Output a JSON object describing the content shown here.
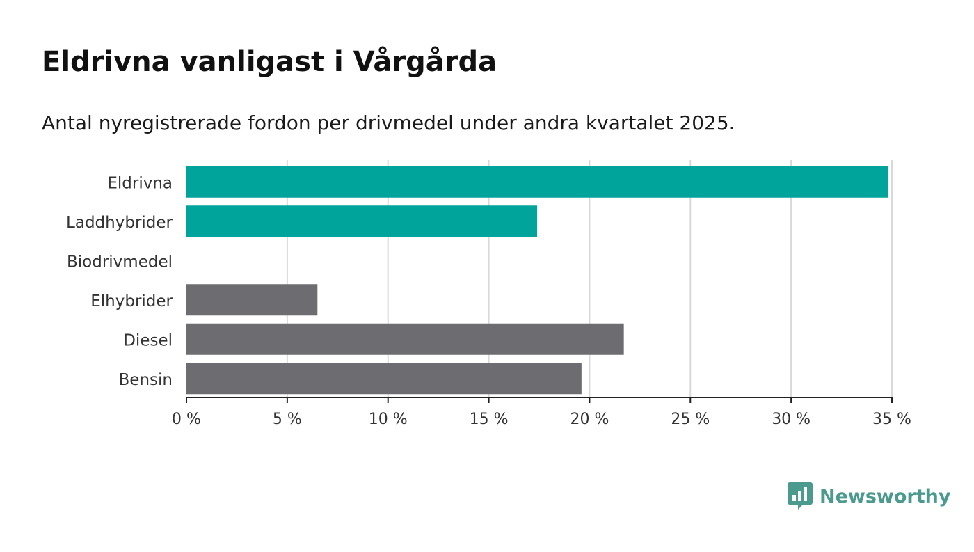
{
  "header": {
    "title": "Eldrivna vanligast i Vårgårda",
    "subtitle": "Antal nyregistrerade fordon per drivmedel under andra kvartalet 2025."
  },
  "brand": {
    "name": "Newsworthy",
    "color": "#4a9a8e",
    "icon": "bar-chart-speech-bubble-icon"
  },
  "colors": {
    "highlight": "#00a49a",
    "other": "#6d6c71",
    "grid": "#d9d9d9",
    "axis": "#222222"
  },
  "chart_data": {
    "type": "bar",
    "orientation": "horizontal",
    "categories": [
      "Eldrivna",
      "Laddhybrider",
      "Biodrivmedel",
      "Elhybrider",
      "Diesel",
      "Bensin"
    ],
    "values": [
      34.8,
      17.4,
      0,
      6.5,
      21.7,
      19.6
    ],
    "highlight": [
      true,
      true,
      false,
      false,
      false,
      false
    ],
    "xlim": [
      0,
      35
    ],
    "xticks": [
      0,
      5,
      10,
      15,
      20,
      25,
      30,
      35
    ],
    "tick_suffix": " %",
    "grid": true
  }
}
